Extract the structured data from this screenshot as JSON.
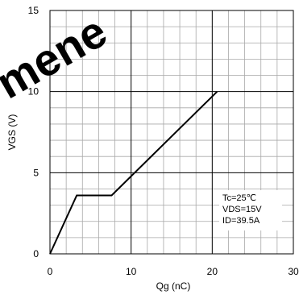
{
  "chart_data": {
    "type": "line",
    "xlabel": "Qg (nC)",
    "ylabel": "VGS (V)",
    "xlim": [
      0,
      30
    ],
    "ylim": [
      0,
      15
    ],
    "x_ticks": [
      "0",
      "10",
      "20",
      "30"
    ],
    "y_ticks": [
      "0",
      "5",
      "10",
      "15"
    ],
    "grid": "on",
    "series": [
      {
        "x": [
          0,
          3.3,
          7.6,
          20.6
        ],
        "y": [
          0,
          3.6,
          3.6,
          10.0
        ]
      }
    ],
    "annotations": [
      "Tc=25℃",
      "VDS=15V",
      "ID=39.5A"
    ],
    "watermark": "mene"
  }
}
